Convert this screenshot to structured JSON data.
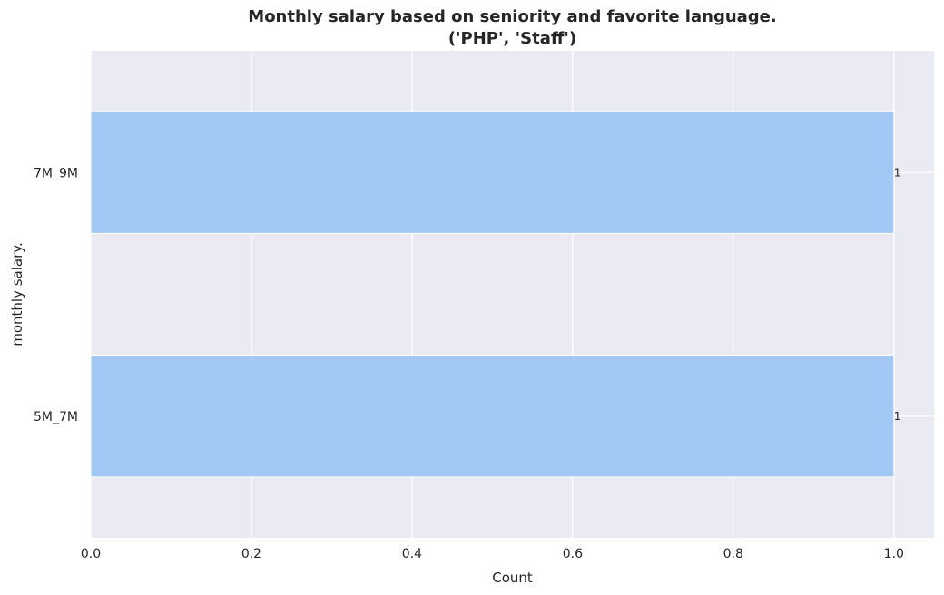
{
  "chart_data": {
    "type": "bar",
    "orientation": "horizontal",
    "title": "Monthly salary based on seniority and favorite language.",
    "subtitle": "('PHP', 'Staff')",
    "xlabel": "Count",
    "ylabel": "monthly salary.",
    "categories": [
      "7M_9M",
      "5M_7M"
    ],
    "values": [
      1,
      1
    ],
    "data_labels": [
      "1",
      "1"
    ],
    "xlim": [
      0,
      1.05
    ],
    "xticks": [
      0.0,
      0.2,
      0.4,
      0.6,
      0.8,
      1.0
    ],
    "xtick_labels": [
      "0.0",
      "0.2",
      "0.4",
      "0.6",
      "0.8",
      "1.0"
    ],
    "grid": true,
    "colors": {
      "bar": "#a1c9f4",
      "plot_background": "#eaeaf2",
      "grid": "#ffffff",
      "text": "#262626"
    }
  }
}
